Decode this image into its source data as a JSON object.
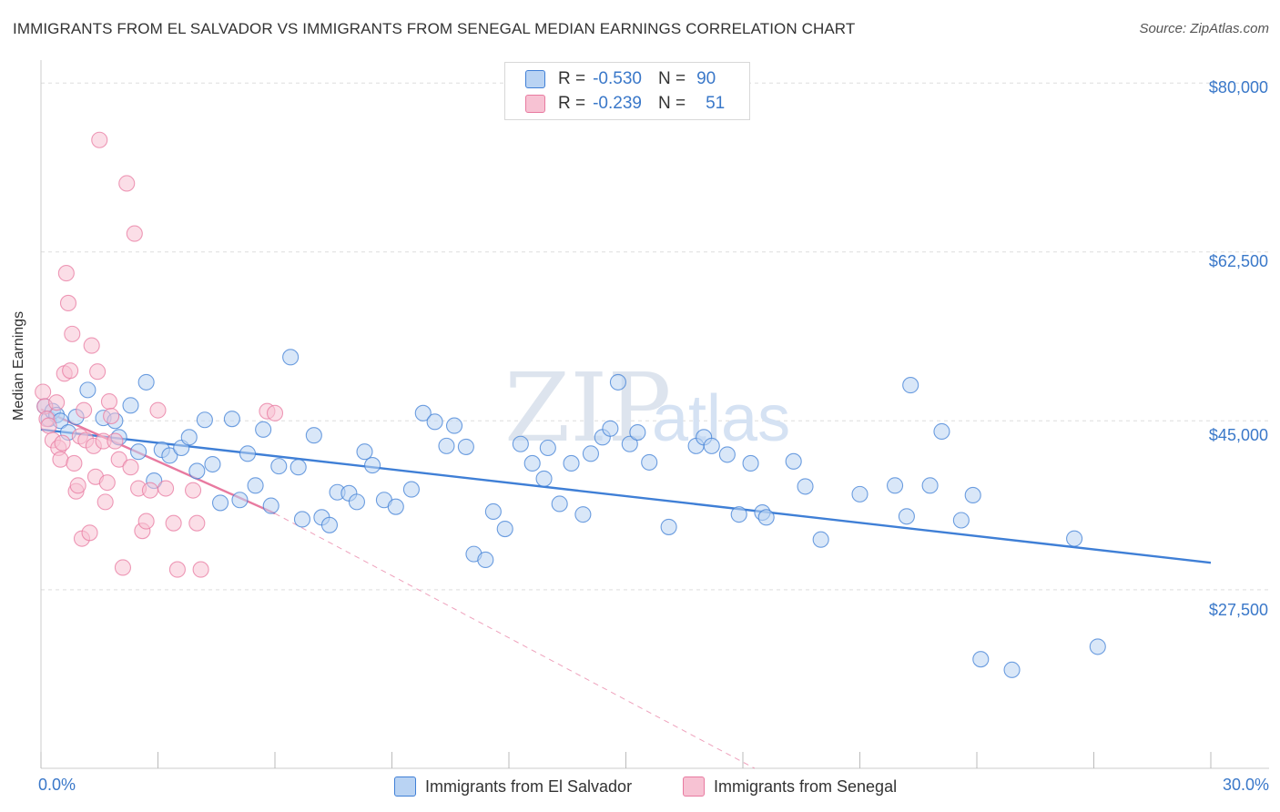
{
  "title": "IMMIGRANTS FROM EL SALVADOR VS IMMIGRANTS FROM SENEGAL MEDIAN EARNINGS CORRELATION CHART",
  "source": "Source: ZipAtlas.com",
  "watermark": {
    "zip": "ZIP",
    "atlas": "atlas"
  },
  "colors": {
    "blue": "#3f7fd6",
    "blue_fill": "#b9d3f3",
    "pink": "#e87aa0",
    "pink_fill": "#f7c2d3",
    "tick_text": "#3a78c9",
    "grid": "#dddddd"
  },
  "legend": {
    "rows": [
      {
        "r_label": "R =",
        "r_value": "-0.530",
        "n_label": "N =",
        "n_value": "90"
      },
      {
        "r_label": "R =",
        "r_value": "-0.239",
        "n_label": "N =",
        "n_value": "51"
      }
    ]
  },
  "bottom_legend": {
    "el_salvador": "Immigrants from El Salvador",
    "senegal": "Immigrants from Senegal"
  },
  "chart_data": {
    "type": "scatter",
    "title": "IMMIGRANTS FROM EL SALVADOR VS IMMIGRANTS FROM SENEGAL MEDIAN EARNINGS CORRELATION CHART",
    "xlabel": "",
    "ylabel": "Median Earnings",
    "xlim": [
      0,
      30
    ],
    "ylim": [
      9000,
      82000
    ],
    "x_tick_labels": {
      "left": "0.0%",
      "right": "30.0%"
    },
    "y_ticks": [
      {
        "value": 80000,
        "label": "$80,000"
      },
      {
        "value": 62500,
        "label": "$62,500"
      },
      {
        "value": 45000,
        "label": "$45,000"
      },
      {
        "value": 27500,
        "label": "$27,500"
      }
    ],
    "grid": true,
    "series": [
      {
        "name": "Immigrants from El Salvador",
        "color": "blue",
        "points": [
          [
            0.1,
            46.5
          ],
          [
            0.2,
            45.2
          ],
          [
            0.3,
            46.0
          ],
          [
            0.4,
            45.6
          ],
          [
            0.5,
            45.0
          ],
          [
            0.7,
            43.8
          ],
          [
            0.9,
            45.4
          ],
          [
            1.2,
            48.2
          ],
          [
            1.6,
            45.3
          ],
          [
            1.9,
            45.0
          ],
          [
            2.0,
            43.3
          ],
          [
            2.3,
            46.6
          ],
          [
            2.5,
            41.8
          ],
          [
            2.7,
            49.0
          ],
          [
            2.9,
            38.8
          ],
          [
            3.1,
            42.0
          ],
          [
            3.3,
            41.4
          ],
          [
            3.6,
            42.2
          ],
          [
            3.8,
            43.3
          ],
          [
            4.0,
            39.8
          ],
          [
            4.2,
            45.1
          ],
          [
            4.4,
            40.5
          ],
          [
            4.6,
            36.5
          ],
          [
            4.9,
            45.2
          ],
          [
            5.1,
            36.8
          ],
          [
            5.3,
            41.6
          ],
          [
            5.5,
            38.3
          ],
          [
            5.7,
            44.1
          ],
          [
            5.9,
            36.2
          ],
          [
            6.1,
            40.3
          ],
          [
            6.4,
            51.6
          ],
          [
            6.6,
            40.2
          ],
          [
            6.7,
            34.8
          ],
          [
            7.0,
            43.5
          ],
          [
            7.2,
            35.0
          ],
          [
            7.4,
            34.2
          ],
          [
            7.6,
            37.6
          ],
          [
            7.9,
            37.5
          ],
          [
            8.1,
            36.6
          ],
          [
            8.3,
            41.8
          ],
          [
            8.5,
            40.4
          ],
          [
            8.8,
            36.8
          ],
          [
            9.1,
            36.1
          ],
          [
            9.5,
            37.9
          ],
          [
            9.8,
            45.8
          ],
          [
            10.1,
            44.9
          ],
          [
            10.4,
            42.4
          ],
          [
            10.6,
            44.5
          ],
          [
            10.9,
            42.3
          ],
          [
            11.1,
            31.2
          ],
          [
            11.4,
            30.6
          ],
          [
            11.6,
            35.6
          ],
          [
            11.9,
            33.8
          ],
          [
            12.3,
            42.6
          ],
          [
            12.6,
            40.6
          ],
          [
            12.9,
            39.0
          ],
          [
            13.0,
            42.2
          ],
          [
            13.3,
            36.4
          ],
          [
            13.6,
            40.6
          ],
          [
            13.9,
            35.3
          ],
          [
            14.1,
            41.6
          ],
          [
            14.4,
            43.3
          ],
          [
            14.6,
            44.2
          ],
          [
            14.8,
            49.0
          ],
          [
            15.1,
            42.6
          ],
          [
            15.3,
            43.8
          ],
          [
            15.6,
            40.7
          ],
          [
            16.1,
            34.0
          ],
          [
            16.8,
            42.4
          ],
          [
            17.0,
            43.3
          ],
          [
            17.2,
            42.4
          ],
          [
            17.6,
            41.5
          ],
          [
            17.9,
            35.3
          ],
          [
            18.2,
            40.6
          ],
          [
            18.5,
            35.5
          ],
          [
            18.6,
            35.0
          ],
          [
            19.3,
            40.8
          ],
          [
            19.6,
            38.2
          ],
          [
            20.0,
            32.7
          ],
          [
            21.0,
            37.4
          ],
          [
            21.9,
            38.3
          ],
          [
            22.2,
            35.1
          ],
          [
            22.3,
            48.7
          ],
          [
            22.8,
            38.3
          ],
          [
            23.1,
            43.9
          ],
          [
            23.6,
            34.7
          ],
          [
            23.9,
            37.3
          ],
          [
            24.1,
            20.3
          ],
          [
            24.9,
            19.2
          ],
          [
            26.5,
            32.8
          ],
          [
            27.1,
            21.6
          ]
        ]
      },
      {
        "name": "Immigrants from Senegal",
        "color": "pink",
        "points": [
          [
            0.05,
            48.0
          ],
          [
            0.1,
            46.5
          ],
          [
            0.15,
            45.2
          ],
          [
            0.2,
            44.5
          ],
          [
            0.3,
            43.0
          ],
          [
            0.4,
            46.9
          ],
          [
            0.45,
            42.2
          ],
          [
            0.5,
            41.0
          ],
          [
            0.55,
            42.7
          ],
          [
            0.6,
            49.9
          ],
          [
            0.65,
            60.3
          ],
          [
            0.7,
            57.2
          ],
          [
            0.75,
            50.2
          ],
          [
            0.8,
            54.0
          ],
          [
            0.85,
            40.6
          ],
          [
            0.9,
            37.7
          ],
          [
            0.95,
            38.3
          ],
          [
            1.0,
            43.4
          ],
          [
            1.05,
            32.8
          ],
          [
            1.1,
            46.1
          ],
          [
            1.15,
            43.0
          ],
          [
            1.25,
            33.4
          ],
          [
            1.3,
            52.8
          ],
          [
            1.35,
            42.4
          ],
          [
            1.4,
            39.2
          ],
          [
            1.45,
            50.1
          ],
          [
            1.5,
            74.1
          ],
          [
            1.6,
            42.9
          ],
          [
            1.65,
            36.6
          ],
          [
            1.7,
            38.6
          ],
          [
            1.75,
            47.0
          ],
          [
            1.8,
            45.5
          ],
          [
            1.9,
            42.9
          ],
          [
            2.0,
            41.0
          ],
          [
            2.1,
            29.8
          ],
          [
            2.2,
            69.6
          ],
          [
            2.3,
            40.2
          ],
          [
            2.4,
            64.4
          ],
          [
            2.5,
            38.0
          ],
          [
            2.6,
            33.6
          ],
          [
            2.7,
            34.6
          ],
          [
            2.8,
            37.8
          ],
          [
            3.0,
            46.1
          ],
          [
            3.2,
            38.0
          ],
          [
            3.4,
            34.4
          ],
          [
            3.5,
            29.6
          ],
          [
            3.9,
            37.8
          ],
          [
            4.0,
            34.4
          ],
          [
            4.1,
            29.6
          ],
          [
            5.8,
            46.0
          ],
          [
            6.0,
            45.8
          ]
        ]
      }
    ],
    "trend_lines": [
      {
        "series": "Immigrants from El Salvador",
        "x0": 0,
        "y0": 44.1,
        "x1": 30,
        "y1": 30.3,
        "style": "solid"
      },
      {
        "series": "Immigrants from Senegal",
        "x0": 0,
        "y0": 46.2,
        "x1": 6.0,
        "y1": 35.4,
        "style": "solid"
      },
      {
        "series": "Immigrants from Senegal",
        "x0": 6.0,
        "y0": 35.4,
        "x1": 18.3,
        "y1": 9.0,
        "style": "dashed"
      }
    ]
  }
}
